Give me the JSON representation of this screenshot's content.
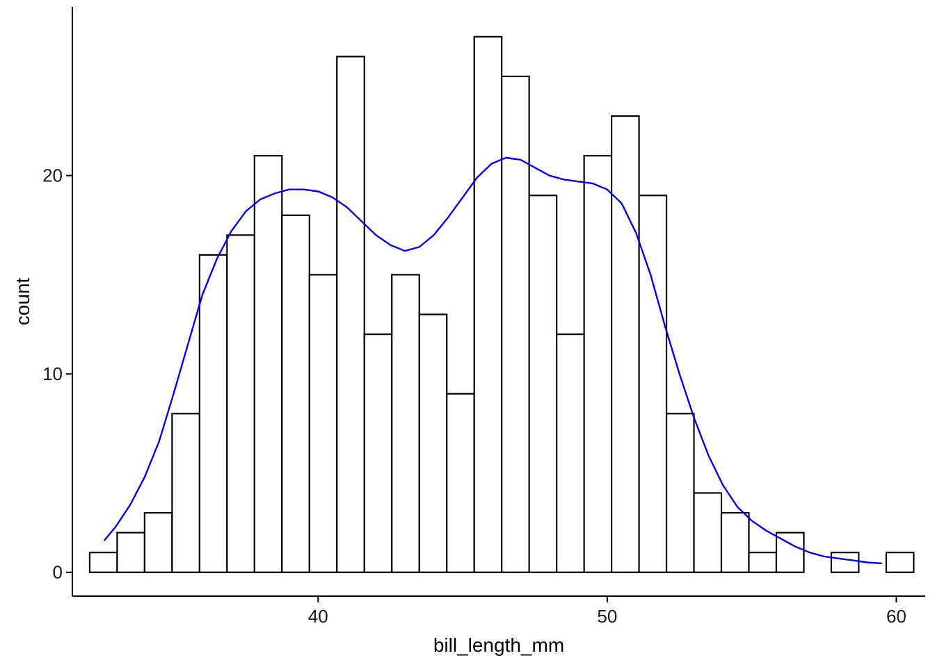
{
  "chart_data": {
    "type": "bar",
    "title": "",
    "xlabel": "bill_length_mm",
    "ylabel": "count",
    "xlim": [
      31.5,
      61.0
    ],
    "ylim": [
      -1.2,
      28.5
    ],
    "x_ticks": [
      40,
      50,
      60
    ],
    "y_ticks": [
      0,
      10,
      20
    ],
    "bin_width": 0.95,
    "bin_start": 32.1,
    "bins": [
      {
        "x": 32.575,
        "count": 1
      },
      {
        "x": 33.525,
        "count": 2
      },
      {
        "x": 34.475,
        "count": 3
      },
      {
        "x": 35.425,
        "count": 8
      },
      {
        "x": 36.375,
        "count": 16
      },
      {
        "x": 37.325,
        "count": 17
      },
      {
        "x": 38.275,
        "count": 21
      },
      {
        "x": 39.225,
        "count": 18
      },
      {
        "x": 40.175,
        "count": 15
      },
      {
        "x": 41.125,
        "count": 26
      },
      {
        "x": 42.075,
        "count": 12
      },
      {
        "x": 43.025,
        "count": 15
      },
      {
        "x": 43.975,
        "count": 13
      },
      {
        "x": 44.925,
        "count": 9
      },
      {
        "x": 45.875,
        "count": 27
      },
      {
        "x": 46.825,
        "count": 25
      },
      {
        "x": 47.775,
        "count": 19
      },
      {
        "x": 48.725,
        "count": 12
      },
      {
        "x": 49.675,
        "count": 21
      },
      {
        "x": 50.625,
        "count": 23
      },
      {
        "x": 51.575,
        "count": 19
      },
      {
        "x": 52.525,
        "count": 8
      },
      {
        "x": 53.475,
        "count": 4
      },
      {
        "x": 54.425,
        "count": 3
      },
      {
        "x": 55.375,
        "count": 1
      },
      {
        "x": 56.325,
        "count": 2
      },
      {
        "x": 57.275,
        "count": 0
      },
      {
        "x": 58.225,
        "count": 1
      },
      {
        "x": 59.175,
        "count": 0
      },
      {
        "x": 60.125,
        "count": 1
      }
    ],
    "density_curve": {
      "color": "#0000ee",
      "points": [
        [
          32.6,
          1.6
        ],
        [
          33.0,
          2.3
        ],
        [
          33.5,
          3.4
        ],
        [
          34.0,
          4.8
        ],
        [
          34.5,
          6.6
        ],
        [
          35.0,
          9.0
        ],
        [
          35.5,
          11.5
        ],
        [
          36.0,
          14.0
        ],
        [
          36.5,
          15.8
        ],
        [
          37.0,
          17.2
        ],
        [
          37.5,
          18.2
        ],
        [
          38.0,
          18.8
        ],
        [
          38.5,
          19.1
        ],
        [
          39.0,
          19.3
        ],
        [
          39.5,
          19.3
        ],
        [
          40.0,
          19.2
        ],
        [
          40.5,
          18.9
        ],
        [
          41.0,
          18.4
        ],
        [
          41.5,
          17.7
        ],
        [
          42.0,
          17.0
        ],
        [
          42.5,
          16.5
        ],
        [
          43.0,
          16.2
        ],
        [
          43.5,
          16.4
        ],
        [
          44.0,
          17.0
        ],
        [
          44.5,
          17.9
        ],
        [
          45.0,
          18.9
        ],
        [
          45.5,
          19.9
        ],
        [
          46.0,
          20.6
        ],
        [
          46.5,
          20.9
        ],
        [
          47.0,
          20.8
        ],
        [
          47.5,
          20.4
        ],
        [
          48.0,
          20.0
        ],
        [
          48.5,
          19.8
        ],
        [
          49.0,
          19.7
        ],
        [
          49.5,
          19.6
        ],
        [
          50.0,
          19.3
        ],
        [
          50.5,
          18.6
        ],
        [
          51.0,
          17.1
        ],
        [
          51.5,
          15.0
        ],
        [
          52.0,
          12.4
        ],
        [
          52.5,
          10.0
        ],
        [
          53.0,
          7.8
        ],
        [
          53.5,
          5.9
        ],
        [
          54.0,
          4.4
        ],
        [
          54.5,
          3.3
        ],
        [
          55.0,
          2.6
        ],
        [
          55.5,
          2.1
        ],
        [
          56.0,
          1.7
        ],
        [
          56.5,
          1.3
        ],
        [
          57.0,
          1.0
        ],
        [
          57.5,
          0.8
        ],
        [
          58.0,
          0.7
        ],
        [
          58.5,
          0.6
        ],
        [
          59.0,
          0.5
        ],
        [
          59.5,
          0.45
        ]
      ]
    },
    "grid": false,
    "colors": {
      "bar_fill": "#ffffff",
      "bar_stroke": "#000000",
      "axis": "#000000",
      "curve": "#0000ee"
    }
  }
}
